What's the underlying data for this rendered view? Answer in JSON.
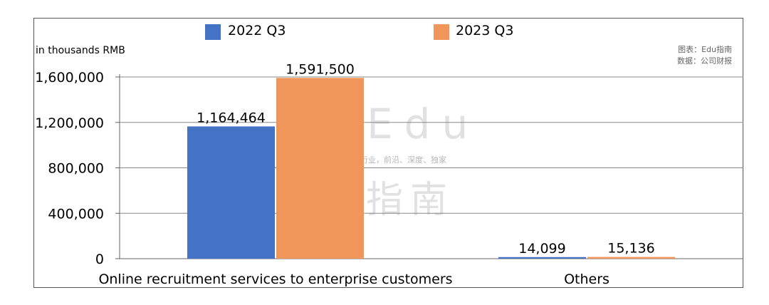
{
  "unit_label": "in thousands RMB",
  "source": {
    "line1": "图表：Edu指南",
    "line2": "数据：公司财报"
  },
  "watermark": {
    "main": "Edu",
    "sub": "教育行业，前沿、深度、独家",
    "cn": "指南"
  },
  "chart_data": {
    "type": "bar",
    "categories": [
      "Online recruitment services to enterprise customers",
      "Others"
    ],
    "series": [
      {
        "name": "2022 Q3",
        "color": "#4472C4",
        "values": [
          1164464,
          14099
        ],
        "labels": [
          "1,164,464",
          "14,099"
        ]
      },
      {
        "name": "2023 Q3",
        "color": "#F0965A",
        "values": [
          1591500,
          15136
        ],
        "labels": [
          "1,591,500",
          "15,136"
        ]
      }
    ],
    "yticks": [
      "0",
      "400,000",
      "800,000",
      "1,200,000",
      "1,600,000"
    ],
    "ylim": [
      0,
      1600000
    ],
    "grid": true,
    "legend": "top"
  }
}
